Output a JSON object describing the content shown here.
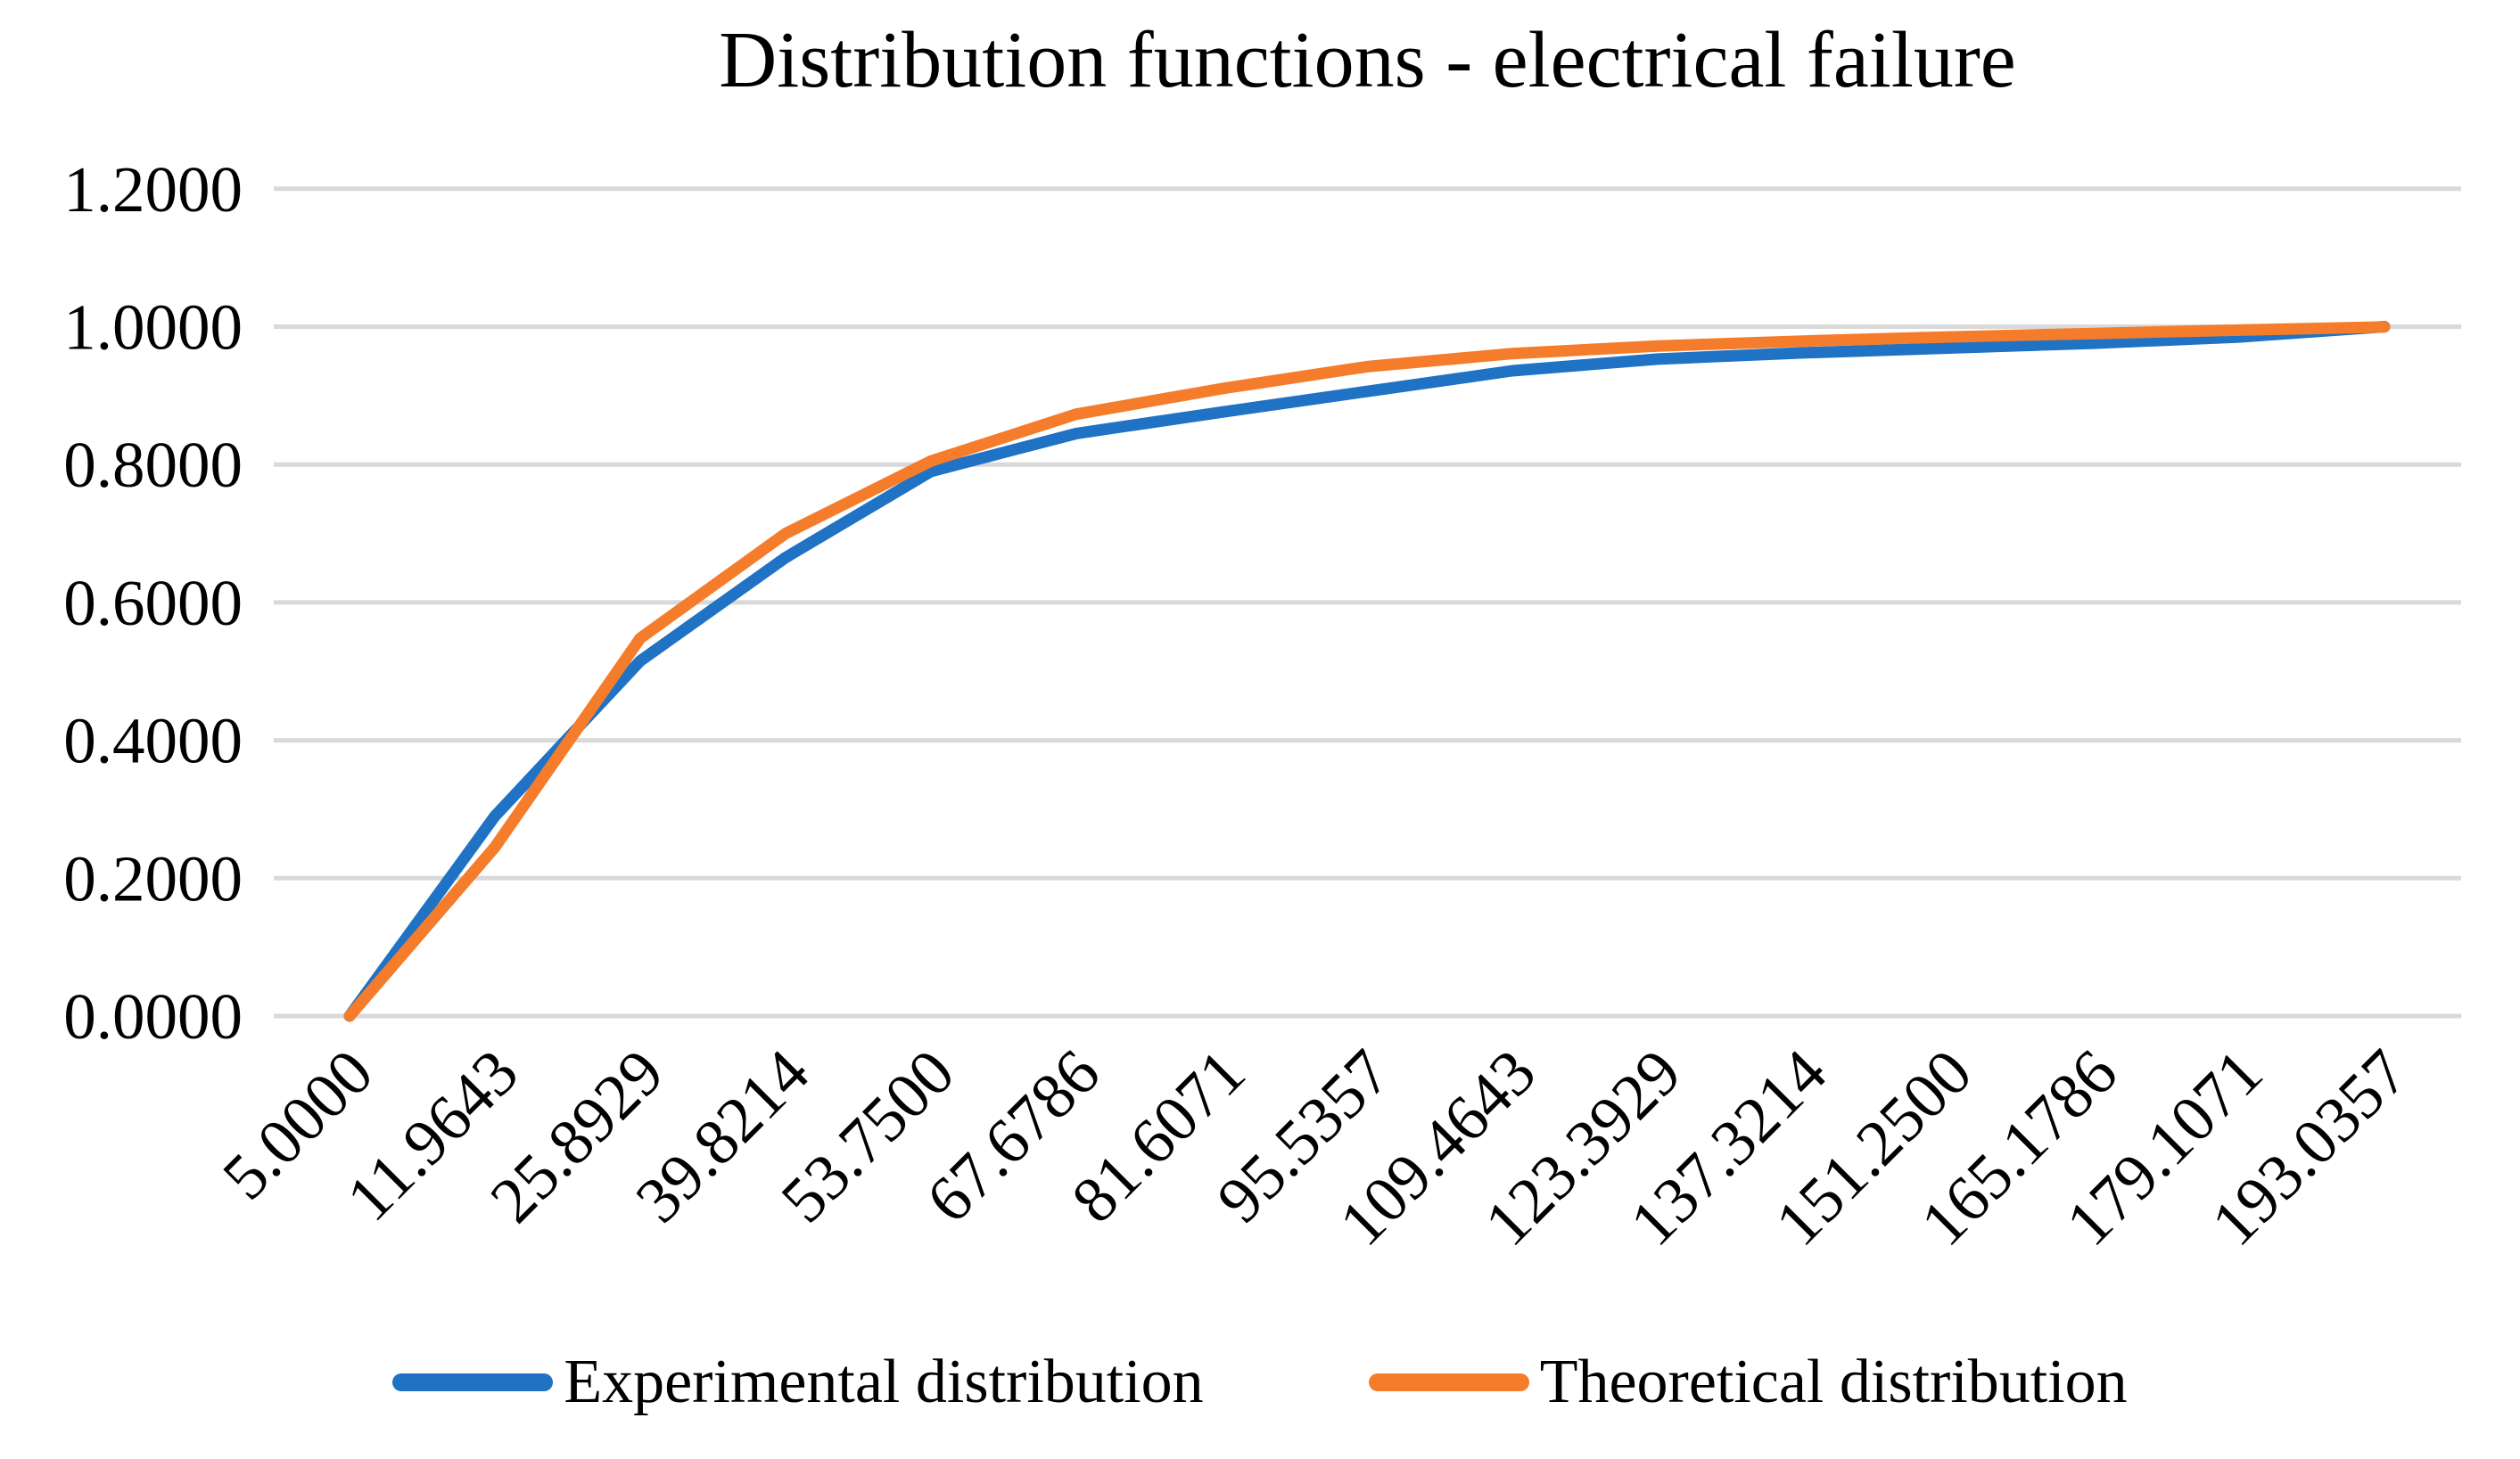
{
  "title": "Distribution functions - electrical failure",
  "colors": {
    "experimental": "#1F72C4",
    "theoretical": "#F57C2B",
    "gridline": "#D9D9D9",
    "text": "#000000",
    "background": "#FFFFFF"
  },
  "chart_data": {
    "type": "line",
    "title": "Distribution functions - electrical failure",
    "categories": [
      "5.0000",
      "11.9643",
      "25.8929",
      "39.8214",
      "53.7500",
      "67.6786",
      "81.6071",
      "95.5357",
      "109.4643",
      "123.3929",
      "137.3214",
      "151.2500",
      "165.1786",
      "179.1071",
      "193.0357"
    ],
    "series": [
      {
        "name": "Experimental distribution",
        "color": "#1F72C4",
        "values": [
          0.0,
          0.29,
          0.515,
          0.665,
          0.79,
          0.845,
          0.876,
          0.906,
          0.936,
          0.953,
          0.962,
          0.969,
          0.976,
          0.985,
          1.0
        ]
      },
      {
        "name": "Theoretical distribution",
        "color": "#F57C2B",
        "values": [
          0.0,
          0.245,
          0.548,
          0.7,
          0.805,
          0.873,
          0.91,
          0.942,
          0.961,
          0.972,
          0.979,
          0.985,
          0.99,
          0.995,
          0.9995
        ]
      }
    ],
    "y_axis": {
      "min": 0.0,
      "max": 1.2,
      "step": 0.2,
      "tick_labels": [
        "0.0000",
        "0.2000",
        "0.4000",
        "0.6000",
        "0.8000",
        "1.0000",
        "1.2000"
      ]
    },
    "x_axis": {
      "label_rotation_deg": 45
    },
    "grid": true,
    "legend_position": "bottom"
  }
}
